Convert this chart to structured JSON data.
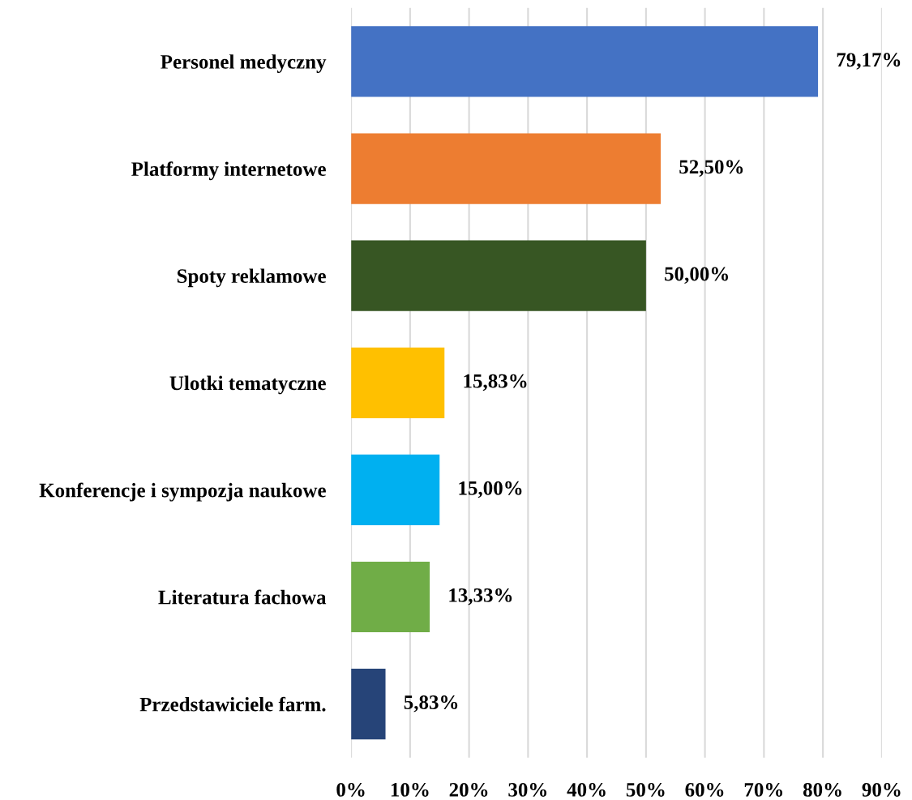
{
  "chart_data": {
    "type": "bar",
    "orientation": "horizontal",
    "categories": [
      "Personel medyczny",
      "Platformy internetowe",
      "Spoty reklamowe",
      "Ulotki tematyczne",
      "Konferencje i sympozja naukowe",
      "Literatura fachowa",
      "Przedstawiciele farm."
    ],
    "values": [
      79.17,
      52.5,
      50.0,
      15.83,
      15.0,
      13.33,
      5.83
    ],
    "value_labels": [
      "79,17%",
      "52,50%",
      "50,00%",
      "15,83%",
      "15,00%",
      "13,33%",
      "5,83%"
    ],
    "colors": [
      "#4472c4",
      "#ed7d31",
      "#375623",
      "#ffc000",
      "#00b0f0",
      "#70ad47",
      "#264478"
    ],
    "xlim": [
      0,
      90
    ],
    "xticks": [
      {
        "value": 0,
        "label": "0%"
      },
      {
        "value": 10,
        "label": "10%"
      },
      {
        "value": 20,
        "label": "20%"
      },
      {
        "value": 30,
        "label": "30%"
      },
      {
        "value": 40,
        "label": "40%"
      },
      {
        "value": 50,
        "label": "50%"
      },
      {
        "value": 60,
        "label": "60%"
      },
      {
        "value": 70,
        "label": "70%"
      },
      {
        "value": 80,
        "label": "80%"
      },
      {
        "value": 90,
        "label": "90%"
      }
    ],
    "grid": "x",
    "legend": false
  }
}
